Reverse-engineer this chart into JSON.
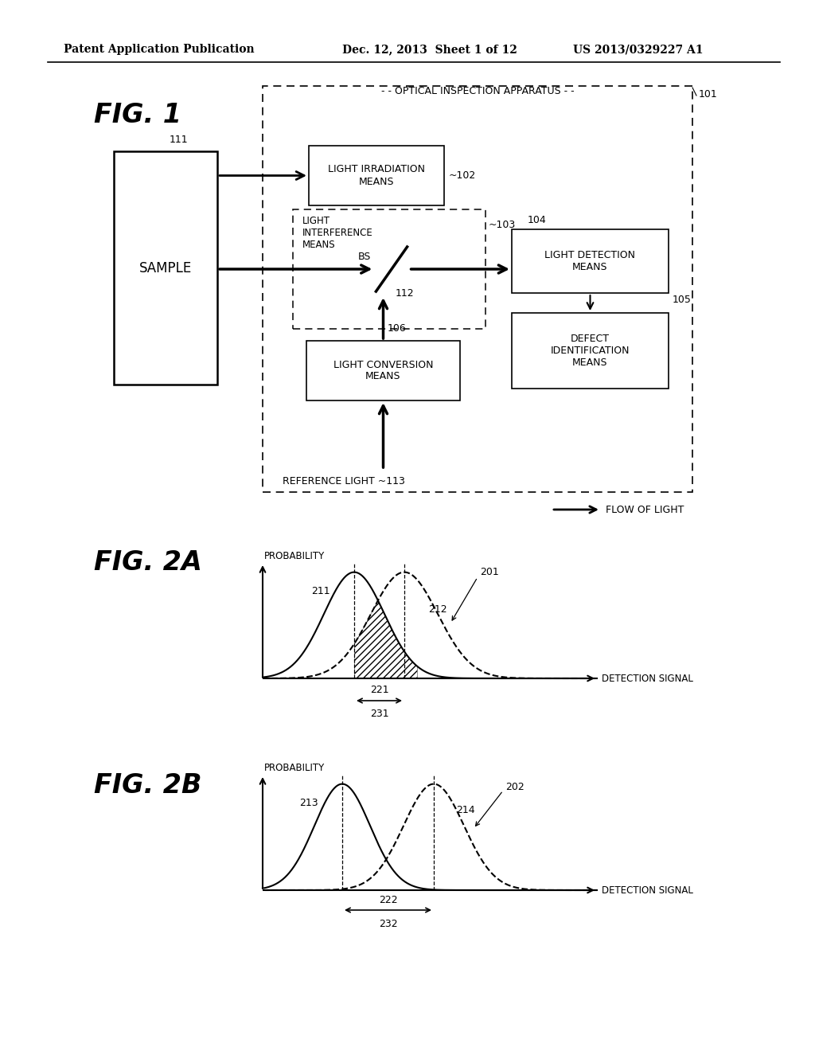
{
  "bg_color": "#ffffff",
  "header_left": "Patent Application Publication",
  "header_center": "Dec. 12, 2013  Sheet 1 of 12",
  "header_right": "US 2013/0329227 A1",
  "fig1_label": "FIG. 1",
  "fig2a_label": "FIG. 2A",
  "fig2b_label": "FIG. 2B",
  "apparatus_label": "OPTICAL INSPECTION APPARATUS",
  "ref_101": "101",
  "ref_102": "102",
  "ref_103": "103",
  "ref_104": "104",
  "ref_105": "105",
  "ref_106": "106",
  "ref_111": "111",
  "ref_112": "112",
  "ref_113": "113",
  "ref_201": "201",
  "ref_202": "202",
  "ref_211": "211",
  "ref_212": "212",
  "ref_213": "213",
  "ref_214": "214",
  "ref_221": "221",
  "ref_222": "222",
  "ref_231": "231",
  "ref_232": "232",
  "box_sample_label": "SAMPLE",
  "box_irr_label": "LIGHT IRRADIATION\nMEANS",
  "box_inter_label": "LIGHT\nINTERFERENCE\nMEANS",
  "box_detect_label": "LIGHT DETECTION\nMEANS",
  "box_defect_label": "DEFECT\nIDENTIFICATION\nMEANS",
  "box_conv_label": "LIGHT CONVERSION\nMEANS",
  "bs_label": "BS",
  "ref_light_label": "REFERENCE LIGHT",
  "flow_label": "FLOW OF LIGHT",
  "prob_label": "PROBABILITY",
  "det_label": "DETECTION SIGNAL"
}
